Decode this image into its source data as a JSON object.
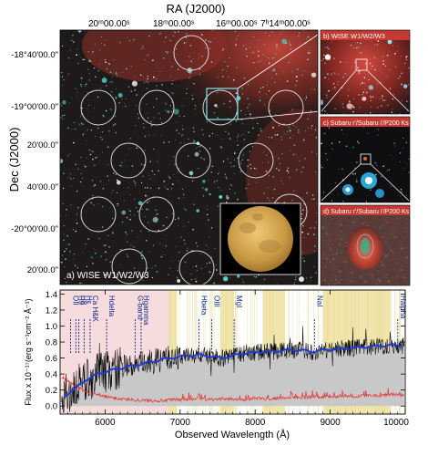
{
  "top_axis": {
    "label": "RA (J2000)",
    "ticks": [
      "20ᵐ00.00ˢ",
      "18ᵐ00.00ˢ",
      "16ᵐ00.00ˢ",
      "7ʰ14ᵐ00.00ˢ"
    ]
  },
  "left_axis": {
    "label": "Dec (J2000)",
    "ticks": [
      "-18°40'00.0\"",
      "-19°00'00.0\"",
      "20'00.0\"",
      "40'00.0\"",
      "-20°00'00.0\"",
      "20'00.0\""
    ]
  },
  "panels": {
    "a_label": "a) WISE W1/W2/W3",
    "b_label": "b) WISE W1/W2/W3",
    "c_label": "c) Subaru r'/Subaru i'/P200 Ks",
    "d_label": "d) Subaru r'/Subaru i'/P200 Ks"
  },
  "colors": {
    "dust": "#c0463a",
    "stars": "#5fe0d0",
    "series_spectrum": "#000000",
    "series_model": "#1f3bd6",
    "series_error": "#e04040",
    "telluric_band": "#eee0a0",
    "blue_region": "#f5d6d6"
  },
  "chart_data": {
    "type": "line",
    "title": "",
    "xlabel": "Observed Wavelength (Å)",
    "ylabel": "Flux x 10⁻¹⁷(erg s⁻¹cm⁻² Å⁻¹)",
    "xlim": [
      5400,
      10000
    ],
    "ylim": [
      -0.1,
      1.45
    ],
    "x_ticks": [
      6000,
      7000,
      8000,
      9000,
      10000
    ],
    "x_tick_labels": [
      "6000",
      "7000",
      "8000",
      "9000",
      "10000"
    ],
    "y_ticks": [
      0.0,
      0.2,
      0.4,
      0.6,
      0.8,
      1.0,
      1.2,
      1.4
    ],
    "y_tick_labels": [
      "0.0",
      "0.2",
      "0.4",
      "0.6",
      "0.8",
      "1.0",
      "1.2",
      "1.4"
    ],
    "grid": false,
    "shaded_regions": [
      {
        "x": [
          5400,
          6900
        ],
        "color": "blue_region"
      },
      {
        "x": [
          6850,
          6950
        ],
        "color": "telluric_band"
      },
      {
        "x": [
          7550,
          7720
        ],
        "color": "telluric_band"
      },
      {
        "x": [
          8100,
          8400
        ],
        "color": "telluric_band"
      },
      {
        "x": [
          8900,
          9800
        ],
        "color": "telluric_band"
      }
    ],
    "line_markers": [
      {
        "label": "OII",
        "x": 5540
      },
      {
        "label": "H9",
        "x": 5610
      },
      {
        "label": "H8",
        "x": 5650
      },
      {
        "label": "Hε",
        "x": 5720
      },
      {
        "label": "Ca H&K",
        "x": 5800
      },
      {
        "label": "Hdelta",
        "x": 6020
      },
      {
        "label": "G-band",
        "x": 6400
      },
      {
        "label": "Hgamma",
        "x": 6480
      },
      {
        "label": "Hbeta",
        "x": 7250
      },
      {
        "label": "OIII",
        "x": 7420
      },
      {
        "label": "MgI",
        "x": 7720
      },
      {
        "label": "NaI",
        "x": 8790
      },
      {
        "label": "Halpha",
        "x": 9900
      }
    ],
    "series": [
      {
        "name": "",
        "role": "model",
        "x": [
          5450,
          5600,
          5750,
          5900,
          6050,
          6200,
          6350,
          6500,
          6650,
          6800,
          6950,
          7100,
          7250,
          7400,
          7550,
          7700,
          7850,
          8000,
          8150,
          8300,
          8450,
          8600,
          8750,
          8900,
          9050,
          9200,
          9350,
          9500,
          9650,
          9800,
          9950
        ],
        "y": [
          0.12,
          0.22,
          0.33,
          0.4,
          0.44,
          0.47,
          0.5,
          0.53,
          0.56,
          0.59,
          0.61,
          0.63,
          0.64,
          0.62,
          0.6,
          0.63,
          0.66,
          0.67,
          0.68,
          0.69,
          0.7,
          0.7,
          0.68,
          0.7,
          0.71,
          0.72,
          0.73,
          0.74,
          0.75,
          0.76,
          0.76
        ]
      },
      {
        "name": "",
        "role": "error",
        "x": [
          5450,
          5600,
          5750,
          5900,
          6050,
          6200,
          6350,
          6500,
          6650,
          6800,
          6950,
          7100,
          7250,
          7400,
          7550,
          7700,
          7850,
          8000,
          8150,
          8300,
          8450,
          8600,
          8750,
          8900,
          9050,
          9200,
          9350,
          9500,
          9650,
          9800,
          9950
        ],
        "y": [
          0.35,
          0.25,
          0.18,
          0.14,
          0.11,
          0.09,
          0.08,
          0.07,
          0.07,
          0.07,
          0.08,
          0.08,
          0.09,
          0.08,
          0.09,
          0.09,
          0.08,
          0.1,
          0.09,
          0.1,
          0.11,
          0.1,
          0.12,
          0.11,
          0.12,
          0.13,
          0.12,
          0.14,
          0.13,
          0.15,
          0.14
        ]
      }
    ]
  }
}
